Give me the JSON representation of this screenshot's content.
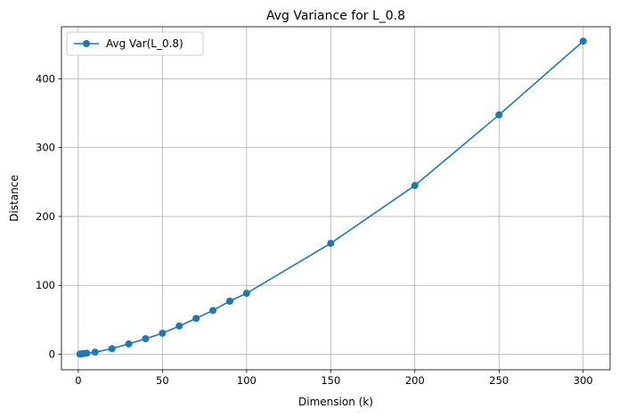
{
  "chart_data": {
    "type": "line",
    "title": "Avg Variance for L_0.8",
    "xlabel": "Dimension (k)",
    "ylabel": "Distance",
    "xlim": [
      -10,
      316
    ],
    "ylim": [
      -22.6,
      475.5
    ],
    "xticks": [
      0,
      50,
      100,
      150,
      200,
      250,
      300
    ],
    "yticks": [
      0,
      100,
      200,
      300,
      400
    ],
    "grid": true,
    "legend_position": "top-left",
    "series": [
      {
        "name": "Avg Var(L_0.8)",
        "color": "#1f77b4",
        "marker": "circle",
        "x": [
          1,
          2,
          3,
          5,
          10,
          20,
          30,
          40,
          50,
          60,
          70,
          80,
          90,
          100,
          150,
          200,
          250,
          300
        ],
        "y": [
          0.3,
          0.6,
          0.9,
          1.5,
          3.0,
          8.0,
          15.0,
          22.5,
          30.5,
          41.0,
          52.0,
          63.5,
          77.0,
          88.5,
          161.0,
          245.0,
          347.5,
          454.5
        ]
      }
    ]
  }
}
